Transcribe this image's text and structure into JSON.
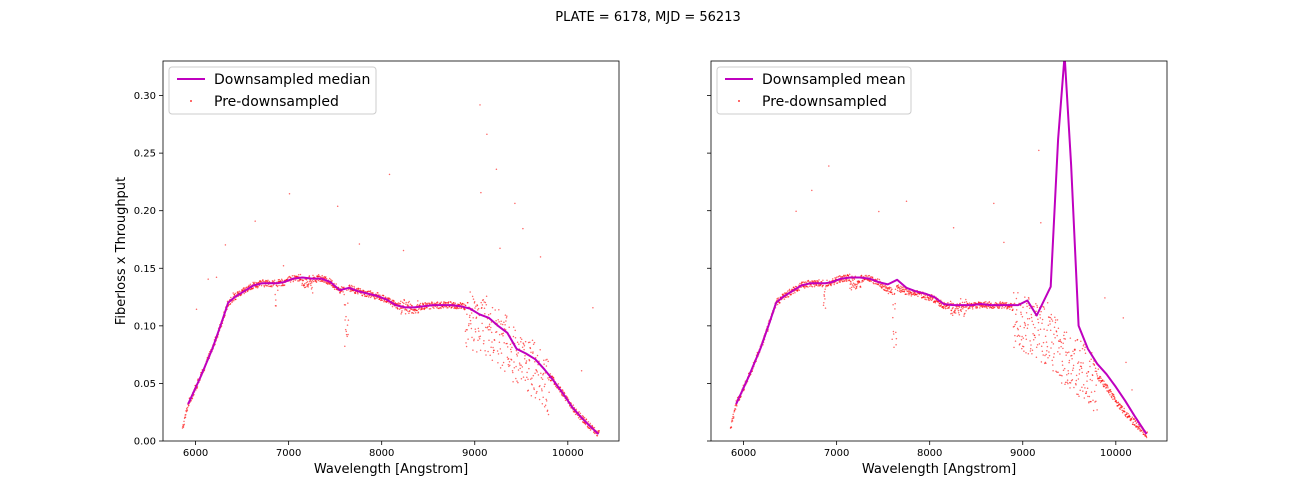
{
  "suptitle": "PLATE = 6178, MJD = 56213",
  "chart_data": [
    {
      "type": "line",
      "title": "",
      "xlabel": "Wavelength [Angstrom]",
      "ylabel": "Fiberloss x Throughput",
      "xlim": [
        5650,
        10550
      ],
      "ylim": [
        0.0,
        0.33
      ],
      "xticks": [
        6000,
        7000,
        8000,
        9000,
        10000
      ],
      "yticks": [
        0.0,
        0.05,
        0.1,
        0.15,
        0.2,
        0.25,
        0.3
      ],
      "grid": false,
      "legend_position": "upper-left",
      "line_color": "#bf00bf",
      "scatter_color": "#ff0000",
      "series": [
        {
          "name": "Downsampled median",
          "kind": "line",
          "x": [
            5920,
            6050,
            6180,
            6280,
            6350,
            6420,
            6520,
            6620,
            6720,
            6800,
            6880,
            6950,
            7050,
            7150,
            7250,
            7350,
            7450,
            7550,
            7650,
            7750,
            7850,
            7950,
            8050,
            8150,
            8250,
            8350,
            8450,
            8550,
            8650,
            8750,
            8850,
            8950,
            9050,
            9150,
            9250,
            9350,
            9450,
            9550,
            9650,
            9750,
            9850,
            9950,
            10050,
            10150,
            10250,
            10330
          ],
          "y": [
            0.032,
            0.055,
            0.08,
            0.103,
            0.12,
            0.125,
            0.13,
            0.135,
            0.137,
            0.137,
            0.137,
            0.138,
            0.141,
            0.142,
            0.141,
            0.141,
            0.138,
            0.131,
            0.133,
            0.13,
            0.128,
            0.126,
            0.123,
            0.118,
            0.116,
            0.116,
            0.117,
            0.118,
            0.118,
            0.118,
            0.117,
            0.115,
            0.11,
            0.107,
            0.1,
            0.094,
            0.08,
            0.076,
            0.071,
            0.062,
            0.052,
            0.041,
            0.029,
            0.02,
            0.012,
            0.006
          ]
        },
        {
          "name": "Pre-downsampled",
          "kind": "scatter",
          "x": [],
          "y": []
        }
      ]
    },
    {
      "type": "line",
      "title": "",
      "xlabel": "Wavelength [Angstrom]",
      "ylabel": "",
      "xlim": [
        5650,
        10550
      ],
      "ylim": [
        0.0,
        0.33
      ],
      "xticks": [
        6000,
        7000,
        8000,
        9000,
        10000
      ],
      "yticks": [
        0.0,
        0.05,
        0.1,
        0.15,
        0.2,
        0.25,
        0.3
      ],
      "grid": false,
      "legend_position": "upper-left",
      "line_color": "#bf00bf",
      "scatter_color": "#ff0000",
      "series": [
        {
          "name": "Downsampled mean",
          "kind": "line",
          "x": [
            5920,
            6050,
            6180,
            6280,
            6350,
            6420,
            6520,
            6620,
            6720,
            6800,
            6880,
            6950,
            7050,
            7150,
            7250,
            7350,
            7450,
            7550,
            7650,
            7750,
            7850,
            7950,
            8050,
            8150,
            8250,
            8350,
            8450,
            8550,
            8650,
            8750,
            8850,
            8950,
            9050,
            9150,
            9300,
            9380,
            9450,
            9520,
            9600,
            9700,
            9800,
            9900,
            10000,
            10100,
            10200,
            10330
          ],
          "y": [
            0.032,
            0.055,
            0.08,
            0.103,
            0.12,
            0.125,
            0.13,
            0.135,
            0.137,
            0.137,
            0.137,
            0.138,
            0.141,
            0.142,
            0.142,
            0.141,
            0.138,
            0.136,
            0.14,
            0.133,
            0.13,
            0.128,
            0.125,
            0.119,
            0.118,
            0.118,
            0.118,
            0.119,
            0.118,
            0.118,
            0.118,
            0.118,
            0.122,
            0.109,
            0.134,
            0.262,
            0.335,
            0.24,
            0.1,
            0.08,
            0.067,
            0.058,
            0.047,
            0.035,
            0.022,
            0.006
          ]
        },
        {
          "name": "Pre-downsampled",
          "kind": "scatter",
          "x": [],
          "y": []
        }
      ]
    }
  ]
}
